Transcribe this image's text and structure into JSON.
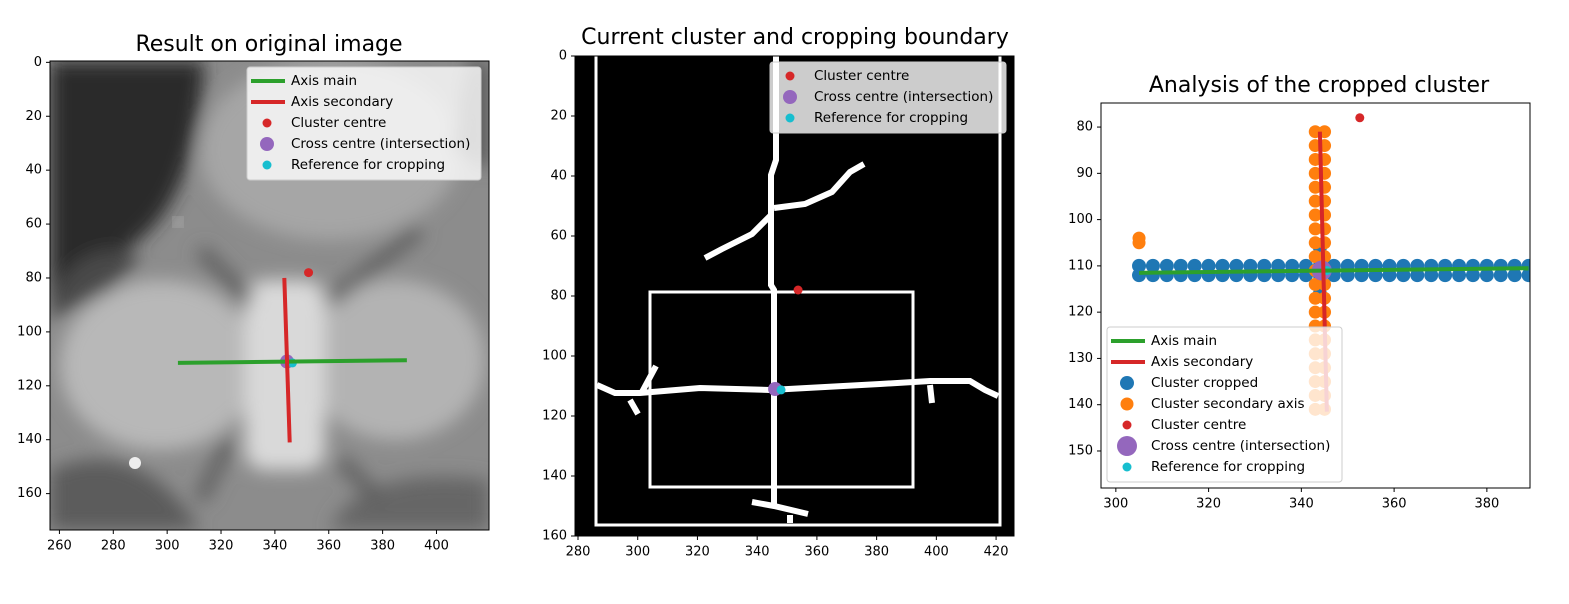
{
  "chart_data": [
    {
      "type": "scatter",
      "title": "Result on original image",
      "xlim": [
        256.5,
        419.5
      ],
      "ylim": [
        173.5,
        -0.5
      ],
      "xticks": [
        260,
        280,
        300,
        320,
        340,
        360,
        380,
        400
      ],
      "yticks": [
        0,
        20,
        40,
        60,
        80,
        100,
        120,
        140,
        160
      ],
      "legend": "upper right",
      "series": [
        {
          "name": "Axis main",
          "type": "line",
          "color": "#2ca02c",
          "x": [
            304,
            389
          ],
          "values": [
            111.5,
            110.5
          ]
        },
        {
          "name": "Axis secondary",
          "type": "line",
          "color": "#d62728",
          "x": [
            343.5,
            345.5
          ],
          "values": [
            80,
            141
          ]
        },
        {
          "name": "Cluster centre",
          "type": "scatter",
          "color": "#d62728",
          "marker_size": 4.5,
          "x": [
            352.5
          ],
          "values": [
            78
          ]
        },
        {
          "name": "Cross centre (intersection)",
          "type": "scatter",
          "color": "#9467bd",
          "marker_size": 7,
          "x": [
            344.5
          ],
          "values": [
            111
          ]
        },
        {
          "name": "Reference for cropping",
          "type": "scatter",
          "color": "#17becf",
          "marker_size": 4.5,
          "x": [
            346.5
          ],
          "values": [
            111.5
          ]
        }
      ]
    },
    {
      "type": "scatter",
      "title": "Current cluster and cropping boundary",
      "xlim": [
        279,
        426
      ],
      "ylim": [
        160,
        0
      ],
      "xticks": [
        280,
        300,
        320,
        340,
        360,
        380,
        400,
        420
      ],
      "yticks": [
        0,
        20,
        40,
        60,
        80,
        100,
        120,
        140,
        160
      ],
      "legend": "upper right",
      "series": [
        {
          "name": "Cluster centre",
          "type": "scatter",
          "color": "#d62728",
          "marker_size": 4.5,
          "x": [
            353.7
          ],
          "values": [
            78
          ]
        },
        {
          "name": "Cross centre (intersection)",
          "type": "scatter",
          "color": "#9467bd",
          "marker_size": 7,
          "x": [
            346
          ],
          "values": [
            111
          ]
        },
        {
          "name": "Reference for cropping",
          "type": "scatter",
          "color": "#17becf",
          "marker_size": 4.5,
          "x": [
            348
          ],
          "values": [
            111.3
          ]
        }
      ]
    },
    {
      "type": "scatter",
      "title": "Analysis of the cropped cluster",
      "xlim": [
        296.8,
        389.3
      ],
      "ylim": [
        158,
        74.8
      ],
      "xticks": [
        300,
        320,
        340,
        360,
        380
      ],
      "yticks": [
        80,
        90,
        100,
        110,
        120,
        130,
        140,
        150
      ],
      "legend": "lower left",
      "series": [
        {
          "name": "Axis main",
          "type": "line",
          "color": "#2ca02c",
          "x": [
            305,
            389
          ],
          "values": [
            111.5,
            110.5
          ]
        },
        {
          "name": "Axis secondary",
          "type": "line",
          "color": "#d62728",
          "x": [
            344,
            345.5
          ],
          "values": [
            81,
            141.5
          ]
        },
        {
          "name": "Cluster cropped",
          "type": "scatter",
          "color": "#1f77b4",
          "marker_size": 7,
          "x": [
            305,
            308,
            311,
            314,
            317,
            320,
            323,
            326,
            329,
            332,
            335,
            338,
            341,
            344,
            347,
            350,
            353,
            356,
            359,
            362,
            365,
            368,
            371,
            374,
            377,
            380,
            383,
            386,
            389,
            305,
            308,
            311,
            314,
            317,
            320,
            323,
            326,
            329,
            332,
            335,
            338,
            341,
            344,
            347,
            350,
            353,
            356,
            359,
            362,
            365,
            368,
            371,
            374,
            377,
            380,
            383,
            386,
            389,
            344,
            344,
            344,
            344
          ],
          "values": [
            110,
            110,
            110,
            110,
            110,
            110,
            110,
            110,
            110,
            110,
            110,
            110,
            110,
            110,
            110,
            110,
            110,
            110,
            110,
            110,
            110,
            110,
            110,
            110,
            110,
            110,
            110,
            110,
            110,
            112,
            112,
            112,
            112,
            112,
            112,
            112,
            112,
            112,
            112,
            112,
            112,
            112,
            112,
            112,
            112,
            112,
            112,
            112,
            112,
            112,
            112,
            112,
            112,
            112,
            112,
            112,
            112,
            112,
            106,
            108,
            114,
            116
          ]
        },
        {
          "name": "Cluster secondary axis",
          "type": "scatter",
          "color": "#ff7f0e",
          "marker_size": 6.5,
          "x": [
            343,
            343,
            343,
            343,
            343,
            343,
            343,
            343,
            343,
            343,
            343,
            343,
            343,
            343,
            343,
            343,
            343,
            343,
            343,
            343,
            343,
            345,
            345,
            345,
            345,
            345,
            345,
            345,
            345,
            345,
            345,
            345,
            345,
            345,
            345,
            345,
            345,
            345,
            345,
            345,
            345,
            345,
            305,
            305
          ],
          "values": [
            81,
            84,
            87,
            90,
            93,
            96,
            99,
            102,
            105,
            108,
            111,
            114,
            117,
            120,
            123,
            126,
            129,
            132,
            135,
            138,
            141,
            81,
            84,
            87,
            90,
            93,
            96,
            99,
            102,
            105,
            108,
            111,
            114,
            117,
            120,
            123,
            126,
            129,
            132,
            135,
            138,
            141,
            104,
            105
          ]
        },
        {
          "name": "Cluster centre",
          "type": "scatter",
          "color": "#d62728",
          "marker_size": 4.5,
          "x": [
            352.6
          ],
          "values": [
            78
          ]
        },
        {
          "name": "Cross centre (intersection)",
          "type": "scatter",
          "color": "#9467bd",
          "marker_size": 10,
          "x": [
            344.4
          ],
          "values": [
            111
          ]
        },
        {
          "name": "Reference for cropping",
          "type": "scatter",
          "color": "#17becf",
          "marker_size": 4.5,
          "x": [
            345.5
          ],
          "values": [
            111
          ]
        }
      ]
    }
  ]
}
